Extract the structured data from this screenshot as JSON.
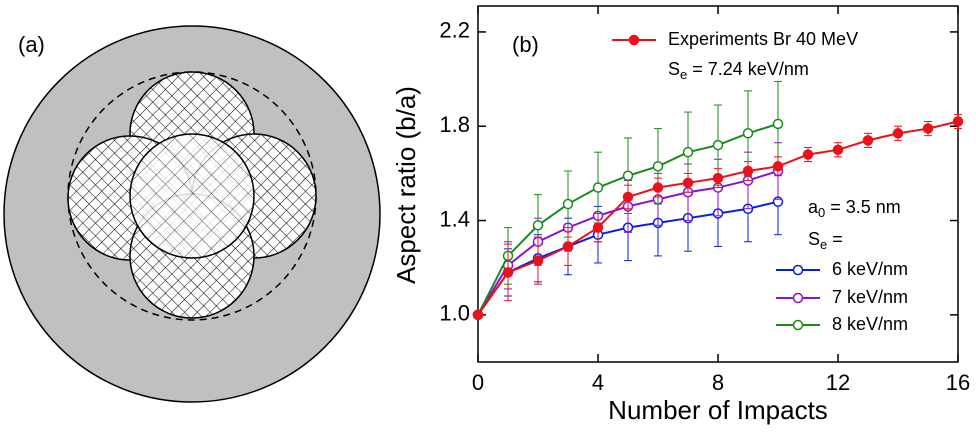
{
  "panel_a": {
    "label": "(a)"
  },
  "chart_data": {
    "type": "line",
    "panel_label": "(b)",
    "x_label": "Number of Impacts",
    "y_label": "Aspect ratio (b/a)",
    "x": [
      0,
      1,
      2,
      3,
      4,
      5,
      6,
      7,
      8,
      9,
      10,
      11,
      12,
      13,
      14,
      15,
      16
    ],
    "xlim": [
      0,
      16
    ],
    "xticks": [
      0,
      4,
      8,
      12,
      16
    ],
    "ylim": [
      0.8,
      2.31
    ],
    "yticks": [
      {
        "value": 1,
        "label": "1.0"
      },
      1.4,
      1.8,
      2.2
    ],
    "series": [
      {
        "name": "Experiments Br 40 MeV",
        "color": "#e8131b",
        "marker": "filled",
        "values": [
          1.0,
          1.18,
          1.23,
          1.29,
          1.37,
          1.5,
          1.54,
          1.56,
          1.58,
          1.61,
          1.63,
          1.68,
          1.7,
          1.74,
          1.77,
          1.79,
          1.82
        ],
        "errors": [
          null,
          0.12,
          0.1,
          0.08,
          0.06,
          0.05,
          0.04,
          0.04,
          0.04,
          0.04,
          0.04,
          0.03,
          0.03,
          0.03,
          0.03,
          0.03,
          0.03
        ]
      },
      {
        "name": "6 keV/nm",
        "color": "#0a1fe0",
        "marker": "open",
        "values": [
          1.0,
          1.18,
          1.24,
          1.29,
          1.34,
          1.37,
          1.39,
          1.41,
          1.43,
          1.45,
          1.48,
          null,
          null,
          null,
          null,
          null,
          null
        ],
        "errors": [
          null,
          0.1,
          0.1,
          0.12,
          0.12,
          0.14,
          0.14,
          0.14,
          0.14,
          0.14,
          0.14,
          null,
          null,
          null,
          null,
          null,
          null
        ]
      },
      {
        "name": "7 keV/nm",
        "color": "#8b0fd6",
        "marker": "open",
        "values": [
          1.0,
          1.21,
          1.31,
          1.37,
          1.42,
          1.46,
          1.49,
          1.52,
          1.54,
          1.57,
          1.61,
          null,
          null,
          null,
          null,
          null,
          null
        ],
        "errors": [
          null,
          0.1,
          0.1,
          0.1,
          0.11,
          0.11,
          0.11,
          0.12,
          0.12,
          0.12,
          0.12,
          null,
          null,
          null,
          null,
          null,
          null
        ]
      },
      {
        "name": "8 keV/nm",
        "color": "#1b8a1b",
        "marker": "open",
        "values": [
          1.0,
          1.25,
          1.38,
          1.47,
          1.54,
          1.59,
          1.63,
          1.69,
          1.72,
          1.77,
          1.81,
          null,
          null,
          null,
          null,
          null,
          null
        ],
        "errors": [
          null,
          0.12,
          0.13,
          0.14,
          0.15,
          0.16,
          0.16,
          0.17,
          0.17,
          0.18,
          0.18,
          null,
          null,
          null,
          null,
          null,
          null
        ]
      }
    ],
    "annotations": [
      {
        "main": "S",
        "sub": "e",
        "rest": " = 7.24 keV/nm"
      },
      {
        "main": "a",
        "sub": "0",
        "rest": " = 3.5 nm"
      },
      {
        "main": "S",
        "sub": "e",
        "rest": " ="
      }
    ]
  }
}
